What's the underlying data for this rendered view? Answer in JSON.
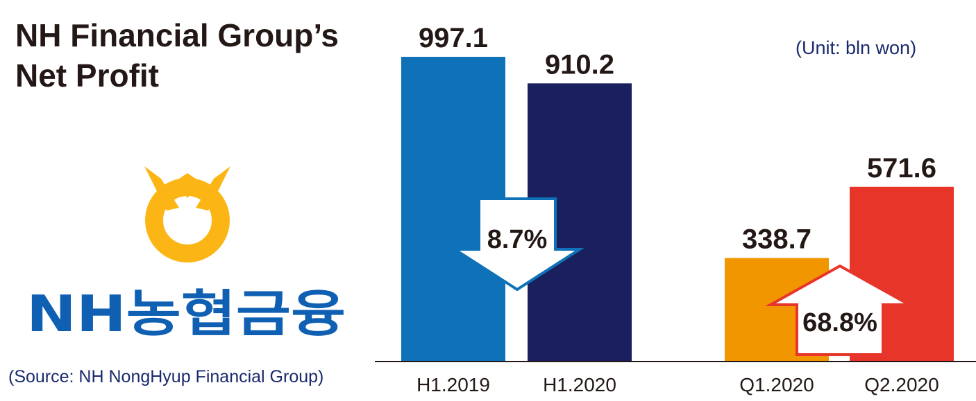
{
  "title": "NH Financial Group’s\nNet Profit",
  "unit": "(Unit: bln won)",
  "source": "(Source: NH NongHyup Financial Group)",
  "logo_text": "NH농협금융",
  "colors": {
    "h1_2019": "#0f71b8",
    "h1_2020": "#1a1f5e",
    "q1_2020": "#f29600",
    "q2_2020": "#e8352a",
    "brand_yellow": "#fbb616",
    "brand_blue": "#0f5fb3"
  },
  "chart_data": {
    "type": "bar",
    "categories": [
      "H1.2019",
      "H1.2020",
      "Q1.2020",
      "Q2.2020"
    ],
    "values": [
      997.1,
      910.2,
      338.7,
      571.6
    ],
    "value_labels": [
      "997.1",
      "910.2",
      "338.7",
      "571.6"
    ],
    "ylim": [
      0,
      1000
    ],
    "annotations": [
      {
        "text": "8.7%",
        "direction": "down",
        "between": [
          "H1.2019",
          "H1.2020"
        ]
      },
      {
        "text": "68.8%",
        "direction": "up",
        "between": [
          "Q1.2020",
          "Q2.2020"
        ]
      }
    ]
  }
}
